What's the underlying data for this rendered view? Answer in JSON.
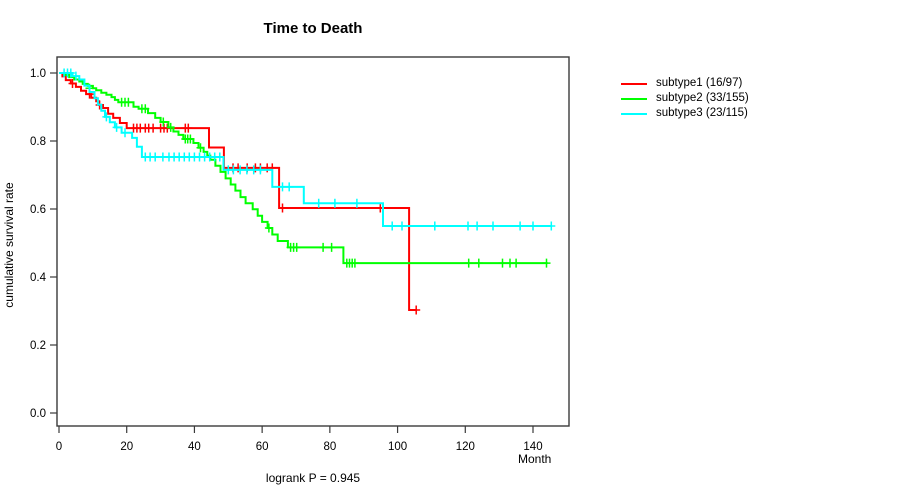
{
  "chart_data": {
    "type": "line",
    "subtype": "kaplan-meier-step",
    "title": "Time to Death",
    "xlabel": "Month",
    "ylabel": "cumulative survival rate",
    "annotation": "logrank P = 0.945",
    "xlim": [
      0,
      150
    ],
    "ylim": [
      0,
      1
    ],
    "xticks": [
      0,
      20,
      40,
      60,
      80,
      100,
      120,
      140
    ],
    "yticks": [
      "0.0",
      "0.2",
      "0.4",
      "0.6",
      "0.8",
      "1.0"
    ],
    "grid": false,
    "legend_position": "right",
    "series": [
      {
        "name": "subtype1 (16/97)",
        "color": "#FF0000",
        "end_month": 105.5,
        "steps": [
          [
            0,
            1.0
          ],
          [
            1,
            0.99
          ],
          [
            2,
            0.979
          ],
          [
            3.5,
            0.969
          ],
          [
            5,
            0.959
          ],
          [
            6.5,
            0.948
          ],
          [
            8,
            0.938
          ],
          [
            9.5,
            0.927
          ],
          [
            11,
            0.917
          ],
          [
            11.8,
            0.906
          ],
          [
            13,
            0.897
          ],
          [
            14.5,
            0.88
          ],
          [
            16,
            0.868
          ],
          [
            18,
            0.853
          ],
          [
            20,
            0.838
          ],
          [
            44.3,
            0.781
          ],
          [
            48.7,
            0.721
          ],
          [
            65,
            0.603
          ],
          [
            103.4,
            0.303
          ]
        ],
        "censors": [
          [
            4,
            0.969
          ],
          [
            9,
            0.938
          ],
          [
            12,
            0.906
          ],
          [
            22,
            0.838
          ],
          [
            23,
            0.838
          ],
          [
            24,
            0.838
          ],
          [
            25.5,
            0.838
          ],
          [
            26.5,
            0.838
          ],
          [
            27.8,
            0.838
          ],
          [
            30,
            0.838
          ],
          [
            31,
            0.838
          ],
          [
            32,
            0.838
          ],
          [
            37.3,
            0.838
          ],
          [
            38.2,
            0.838
          ],
          [
            51.4,
            0.721
          ],
          [
            52.9,
            0.721
          ],
          [
            55.6,
            0.721
          ],
          [
            58,
            0.721
          ],
          [
            59.5,
            0.721
          ],
          [
            61.5,
            0.721
          ],
          [
            63,
            0.721
          ],
          [
            66,
            0.603
          ],
          [
            94.9,
            0.603
          ],
          [
            105.5,
            0.303
          ]
        ]
      },
      {
        "name": "subtype2 (33/155)",
        "color": "#00FF00",
        "end_month": 144.3,
        "steps": [
          [
            0,
            1.0
          ],
          [
            1.5,
            0.994
          ],
          [
            3,
            0.988
          ],
          [
            4.5,
            0.981
          ],
          [
            6,
            0.975
          ],
          [
            7,
            0.968
          ],
          [
            8.5,
            0.962
          ],
          [
            10,
            0.955
          ],
          [
            11,
            0.949
          ],
          [
            12.5,
            0.942
          ],
          [
            14,
            0.936
          ],
          [
            15.5,
            0.929
          ],
          [
            16.5,
            0.921
          ],
          [
            17.5,
            0.914
          ],
          [
            22,
            0.901
          ],
          [
            23.5,
            0.895
          ],
          [
            26.3,
            0.882
          ],
          [
            28.4,
            0.868
          ],
          [
            30,
            0.856
          ],
          [
            32.3,
            0.84
          ],
          [
            33.8,
            0.828
          ],
          [
            35.3,
            0.818
          ],
          [
            36.7,
            0.806
          ],
          [
            39.7,
            0.794
          ],
          [
            41.2,
            0.78
          ],
          [
            42.7,
            0.768
          ],
          [
            43.8,
            0.757
          ],
          [
            44.7,
            0.745
          ],
          [
            46.2,
            0.727
          ],
          [
            47.7,
            0.709
          ],
          [
            49.2,
            0.69
          ],
          [
            50.7,
            0.672
          ],
          [
            52.1,
            0.654
          ],
          [
            53.6,
            0.635
          ],
          [
            55.1,
            0.617
          ],
          [
            57.2,
            0.599
          ],
          [
            58.7,
            0.58
          ],
          [
            60,
            0.562
          ],
          [
            61.6,
            0.544
          ],
          [
            63,
            0.525
          ],
          [
            64.6,
            0.506
          ],
          [
            67.6,
            0.487
          ],
          [
            84,
            0.441
          ]
        ],
        "censors": [
          [
            9,
            0.955
          ],
          [
            18.5,
            0.914
          ],
          [
            19.5,
            0.914
          ],
          [
            20.5,
            0.914
          ],
          [
            24.5,
            0.895
          ],
          [
            25.5,
            0.895
          ],
          [
            30.8,
            0.856
          ],
          [
            33,
            0.84
          ],
          [
            37.3,
            0.806
          ],
          [
            38,
            0.806
          ],
          [
            38.8,
            0.806
          ],
          [
            41.8,
            0.78
          ],
          [
            62,
            0.544
          ],
          [
            68.4,
            0.487
          ],
          [
            69.3,
            0.487
          ],
          [
            70.2,
            0.487
          ],
          [
            78,
            0.487
          ],
          [
            80.5,
            0.487
          ],
          [
            85,
            0.441
          ],
          [
            85.8,
            0.441
          ],
          [
            86.6,
            0.441
          ],
          [
            87.4,
            0.441
          ],
          [
            121,
            0.441
          ],
          [
            124,
            0.441
          ],
          [
            131,
            0.441
          ],
          [
            133.2,
            0.441
          ],
          [
            135,
            0.441
          ],
          [
            144,
            0.441
          ]
        ]
      },
      {
        "name": "subtype3 (23/115)",
        "color": "#00FFFF",
        "end_month": 145.4,
        "steps": [
          [
            0,
            1.0
          ],
          [
            4,
            0.991
          ],
          [
            6,
            0.981
          ],
          [
            7.5,
            0.963
          ],
          [
            9,
            0.944
          ],
          [
            10.5,
            0.926
          ],
          [
            11.5,
            0.907
          ],
          [
            12.5,
            0.889
          ],
          [
            13.6,
            0.871
          ],
          [
            15,
            0.855
          ],
          [
            16.5,
            0.84
          ],
          [
            18.5,
            0.824
          ],
          [
            21.6,
            0.809
          ],
          [
            23,
            0.783
          ],
          [
            24.5,
            0.753
          ],
          [
            48.6,
            0.715
          ],
          [
            63,
            0.665
          ],
          [
            72.3,
            0.617
          ],
          [
            95.7,
            0.55
          ]
        ],
        "censors": [
          [
            1.5,
            1.0
          ],
          [
            2.5,
            1.0
          ],
          [
            3.5,
            1.0
          ],
          [
            5,
            0.991
          ],
          [
            14,
            0.871
          ],
          [
            17,
            0.84
          ],
          [
            19.5,
            0.824
          ],
          [
            25.5,
            0.753
          ],
          [
            26.9,
            0.753
          ],
          [
            28.4,
            0.753
          ],
          [
            30.7,
            0.753
          ],
          [
            32.5,
            0.753
          ],
          [
            34,
            0.753
          ],
          [
            35.5,
            0.753
          ],
          [
            37,
            0.753
          ],
          [
            38.5,
            0.753
          ],
          [
            40,
            0.753
          ],
          [
            41.5,
            0.753
          ],
          [
            43,
            0.753
          ],
          [
            44.5,
            0.753
          ],
          [
            46,
            0.753
          ],
          [
            47.5,
            0.753
          ],
          [
            50,
            0.715
          ],
          [
            51.5,
            0.715
          ],
          [
            53.5,
            0.715
          ],
          [
            55.5,
            0.715
          ],
          [
            57.5,
            0.715
          ],
          [
            59.5,
            0.715
          ],
          [
            66,
            0.665
          ],
          [
            68,
            0.665
          ],
          [
            76.7,
            0.617
          ],
          [
            81.5,
            0.617
          ],
          [
            88,
            0.617
          ],
          [
            98.4,
            0.55
          ],
          [
            101.3,
            0.55
          ],
          [
            111,
            0.55
          ],
          [
            120.8,
            0.55
          ],
          [
            123.5,
            0.55
          ],
          [
            128.2,
            0.55
          ],
          [
            136.2,
            0.55
          ],
          [
            140,
            0.55
          ],
          [
            145.4,
            0.55
          ]
        ]
      }
    ]
  }
}
